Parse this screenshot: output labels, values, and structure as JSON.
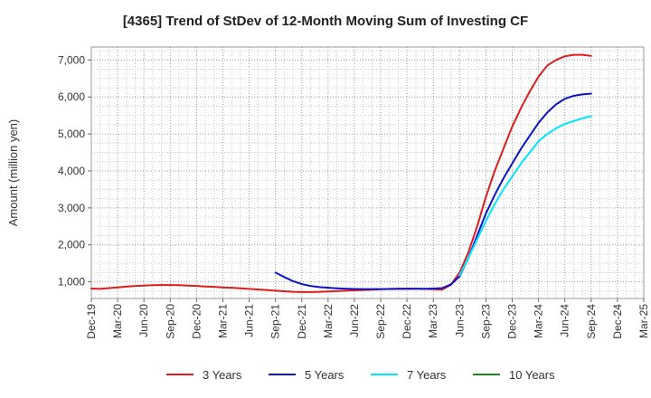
{
  "chart_data": {
    "type": "line",
    "title": "[4365]  Trend of StDev of 12-Month Moving Sum of Investing CF",
    "ylabel": "Amount (million yen)",
    "xlabel": "",
    "ylim": [
      550,
      7350
    ],
    "yticks": [
      1000,
      2000,
      3000,
      4000,
      5000,
      6000,
      7000
    ],
    "ytick_labels": [
      "1,000",
      "2,000",
      "3,000",
      "4,000",
      "5,000",
      "6,000",
      "7,000"
    ],
    "xtick_labels": [
      "Dec-19",
      "Mar-20",
      "Jun-20",
      "Sep-20",
      "Dec-20",
      "Mar-21",
      "Jun-21",
      "Sep-21",
      "Dec-21",
      "Mar-22",
      "Jun-22",
      "Sep-22",
      "Dec-22",
      "Mar-23",
      "Jun-23",
      "Sep-23",
      "Dec-23",
      "Mar-24",
      "Jun-24",
      "Sep-24",
      "Dec-24",
      "Mar-25"
    ],
    "x_range_months": [
      "2019-12",
      "2025-03"
    ],
    "grid": true,
    "legend_position": "bottom",
    "series": [
      {
        "name": "3 Years",
        "color": "#dd1c1c",
        "points": [
          [
            "2019-12",
            820
          ],
          [
            "2020-01",
            810
          ],
          [
            "2020-02",
            830
          ],
          [
            "2020-03",
            850
          ],
          [
            "2020-04",
            870
          ],
          [
            "2020-05",
            890
          ],
          [
            "2020-06",
            900
          ],
          [
            "2020-07",
            910
          ],
          [
            "2020-08",
            915
          ],
          [
            "2020-09",
            915
          ],
          [
            "2020-10",
            910
          ],
          [
            "2020-11",
            900
          ],
          [
            "2020-12",
            890
          ],
          [
            "2021-01",
            875
          ],
          [
            "2021-02",
            865
          ],
          [
            "2021-03",
            850
          ],
          [
            "2021-04",
            840
          ],
          [
            "2021-05",
            825
          ],
          [
            "2021-06",
            810
          ],
          [
            "2021-07",
            795
          ],
          [
            "2021-08",
            780
          ],
          [
            "2021-09",
            760
          ],
          [
            "2021-10",
            745
          ],
          [
            "2021-11",
            730
          ],
          [
            "2021-12",
            725
          ],
          [
            "2022-01",
            725
          ],
          [
            "2022-02",
            730
          ],
          [
            "2022-03",
            740
          ],
          [
            "2022-04",
            750
          ],
          [
            "2022-05",
            760
          ],
          [
            "2022-06",
            770
          ],
          [
            "2022-07",
            780
          ],
          [
            "2022-08",
            790
          ],
          [
            "2022-09",
            800
          ],
          [
            "2022-10",
            810
          ],
          [
            "2022-11",
            815
          ],
          [
            "2022-12",
            820
          ],
          [
            "2023-01",
            815
          ],
          [
            "2023-02",
            810
          ],
          [
            "2023-03",
            800
          ],
          [
            "2023-04",
            790
          ],
          [
            "2023-05",
            920
          ],
          [
            "2023-06",
            1250
          ],
          [
            "2023-07",
            1800
          ],
          [
            "2023-08",
            2500
          ],
          [
            "2023-09",
            3300
          ],
          [
            "2023-10",
            4000
          ],
          [
            "2023-11",
            4600
          ],
          [
            "2023-12",
            5200
          ],
          [
            "2024-01",
            5700
          ],
          [
            "2024-02",
            6150
          ],
          [
            "2024-03",
            6550
          ],
          [
            "2024-04",
            6850
          ],
          [
            "2024-05",
            7000
          ],
          [
            "2024-06",
            7100
          ],
          [
            "2024-07",
            7140
          ],
          [
            "2024-08",
            7140
          ],
          [
            "2024-09",
            7110
          ]
        ]
      },
      {
        "name": "5 Years",
        "color": "#0a14c8",
        "points": [
          [
            "2021-09",
            1250
          ],
          [
            "2021-10",
            1130
          ],
          [
            "2021-11",
            1020
          ],
          [
            "2021-12",
            940
          ],
          [
            "2022-01",
            890
          ],
          [
            "2022-02",
            860
          ],
          [
            "2022-03",
            840
          ],
          [
            "2022-04",
            825
          ],
          [
            "2022-05",
            815
          ],
          [
            "2022-06",
            808
          ],
          [
            "2022-07",
            805
          ],
          [
            "2022-08",
            805
          ],
          [
            "2022-09",
            805
          ],
          [
            "2022-10",
            808
          ],
          [
            "2022-11",
            810
          ],
          [
            "2022-12",
            810
          ],
          [
            "2023-01",
            812
          ],
          [
            "2023-02",
            814
          ],
          [
            "2023-03",
            820
          ],
          [
            "2023-04",
            830
          ],
          [
            "2023-05",
            930
          ],
          [
            "2023-06",
            1150
          ],
          [
            "2023-07",
            1650
          ],
          [
            "2023-08",
            2250
          ],
          [
            "2023-09",
            2850
          ],
          [
            "2023-10",
            3350
          ],
          [
            "2023-11",
            3800
          ],
          [
            "2023-12",
            4200
          ],
          [
            "2024-01",
            4600
          ],
          [
            "2024-02",
            4950
          ],
          [
            "2024-03",
            5300
          ],
          [
            "2024-04",
            5580
          ],
          [
            "2024-05",
            5800
          ],
          [
            "2024-06",
            5950
          ],
          [
            "2024-07",
            6030
          ],
          [
            "2024-08",
            6070
          ],
          [
            "2024-09",
            6090
          ]
        ]
      },
      {
        "name": "7 Years",
        "color": "#00e5ff",
        "points": [
          [
            "2023-06",
            1180
          ],
          [
            "2023-07",
            1650
          ],
          [
            "2023-08",
            2150
          ],
          [
            "2023-09",
            2650
          ],
          [
            "2023-10",
            3100
          ],
          [
            "2023-11",
            3500
          ],
          [
            "2023-12",
            3850
          ],
          [
            "2024-01",
            4200
          ],
          [
            "2024-02",
            4500
          ],
          [
            "2024-03",
            4800
          ],
          [
            "2024-04",
            5000
          ],
          [
            "2024-05",
            5150
          ],
          [
            "2024-06",
            5270
          ],
          [
            "2024-07",
            5350
          ],
          [
            "2024-08",
            5420
          ],
          [
            "2024-09",
            5480
          ]
        ]
      },
      {
        "name": "10 Years",
        "color": "#1a8c1a",
        "points": []
      }
    ]
  }
}
